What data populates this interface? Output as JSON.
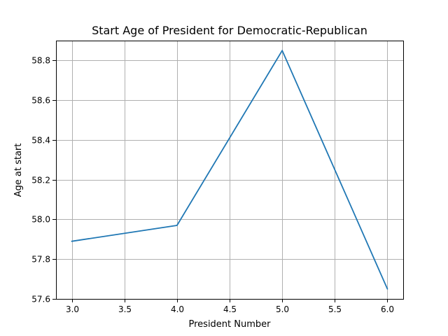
{
  "chart_data": {
    "type": "line",
    "title": "Start Age of President for Democratic-Republican",
    "xlabel": "President Number",
    "ylabel": "Age at start",
    "xlim": [
      2.85,
      6.15
    ],
    "ylim": [
      57.6,
      58.9
    ],
    "xticks": [
      3.0,
      3.5,
      4.0,
      4.5,
      5.0,
      5.5,
      6.0
    ],
    "xtick_labels": [
      "3.0",
      "3.5",
      "4.0",
      "4.5",
      "5.0",
      "5.5",
      "6.0"
    ],
    "yticks": [
      57.6,
      57.8,
      58.0,
      58.2,
      58.4,
      58.6,
      58.8
    ],
    "ytick_labels": [
      "57.6",
      "57.8",
      "58.0",
      "58.2",
      "58.4",
      "58.6",
      "58.8"
    ],
    "grid": true,
    "series": [
      {
        "color": "#1f77b4",
        "x": [
          3,
          4,
          5,
          6
        ],
        "y": [
          57.89,
          57.97,
          58.85,
          57.65
        ]
      }
    ]
  }
}
